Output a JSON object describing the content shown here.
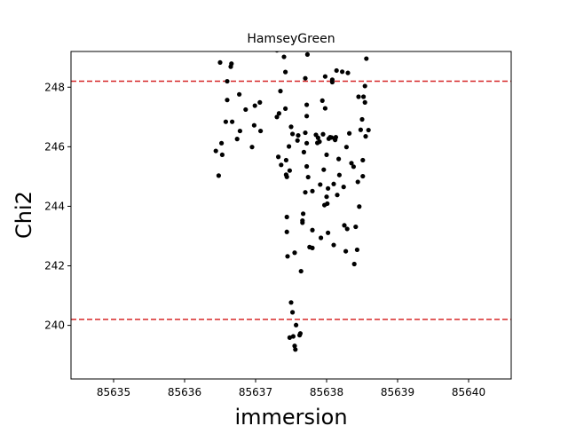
{
  "chart_data": {
    "type": "scatter",
    "title": "HamseyGreen",
    "xlabel": "immersion",
    "ylabel": "Chi2",
    "xlim": [
      85634.4,
      85640.6
    ],
    "ylim": [
      238.2,
      249.2
    ],
    "xticks": [
      85635,
      85636,
      85637,
      85638,
      85639,
      85640
    ],
    "yticks": [
      240,
      242,
      244,
      246,
      248
    ],
    "grid": false,
    "point_color": "#000000",
    "hlines": [
      {
        "y": 248.2,
        "color": "#d62728",
        "style": "dashed"
      },
      {
        "y": 240.2,
        "color": "#d62728",
        "style": "dashed"
      }
    ],
    "points": [
      [
        85636.44,
        245.86
      ],
      [
        85636.48,
        245.03
      ],
      [
        85636.5,
        248.83
      ],
      [
        85636.52,
        246.12
      ],
      [
        85636.53,
        245.73
      ],
      [
        85636.58,
        246.84
      ],
      [
        85636.6,
        247.57
      ],
      [
        85636.6,
        248.2
      ],
      [
        85636.65,
        248.69
      ],
      [
        85636.66,
        248.79
      ],
      [
        85636.67,
        246.84
      ],
      [
        85636.74,
        246.26
      ],
      [
        85636.77,
        247.76
      ],
      [
        85636.78,
        246.53
      ],
      [
        85636.86,
        247.25
      ],
      [
        85636.95,
        245.99
      ],
      [
        85636.98,
        246.72
      ],
      [
        85636.99,
        247.38
      ],
      [
        85637.06,
        247.49
      ],
      [
        85637.07,
        246.53
      ],
      [
        85637.3,
        247.0
      ],
      [
        85637.3,
        249.24
      ],
      [
        85637.32,
        245.66
      ],
      [
        85637.33,
        247.12
      ],
      [
        85637.35,
        247.87
      ],
      [
        85637.36,
        245.39
      ],
      [
        85637.4,
        249.02
      ],
      [
        85637.42,
        248.51
      ],
      [
        85637.42,
        247.28
      ],
      [
        85637.43,
        245.55
      ],
      [
        85637.43,
        245.06
      ],
      [
        85637.44,
        244.99
      ],
      [
        85637.44,
        243.64
      ],
      [
        85637.44,
        243.14
      ],
      [
        85637.45,
        242.32
      ],
      [
        85637.47,
        246.01
      ],
      [
        85637.48,
        245.2
      ],
      [
        85637.48,
        239.59
      ],
      [
        85637.5,
        246.67
      ],
      [
        85637.5,
        240.77
      ],
      [
        85637.52,
        246.43
      ],
      [
        85637.52,
        240.44
      ],
      [
        85637.53,
        239.63
      ],
      [
        85637.55,
        242.44
      ],
      [
        85637.55,
        239.31
      ],
      [
        85637.56,
        239.19
      ],
      [
        85637.57,
        240.01
      ],
      [
        85637.59,
        246.21
      ],
      [
        85637.6,
        246.38
      ],
      [
        85637.62,
        239.67
      ],
      [
        85637.63,
        239.73
      ],
      [
        85637.64,
        241.82
      ],
      [
        85637.66,
        243.52
      ],
      [
        85637.66,
        243.45
      ],
      [
        85637.67,
        243.75
      ],
      [
        85637.68,
        245.82
      ],
      [
        85637.7,
        246.47
      ],
      [
        85637.7,
        248.3
      ],
      [
        85637.7,
        244.47
      ],
      [
        85637.72,
        247.03
      ],
      [
        85637.72,
        247.41
      ],
      [
        85637.72,
        246.12
      ],
      [
        85637.72,
        245.34
      ],
      [
        85637.73,
        249.1
      ],
      [
        85637.73,
        249.3
      ],
      [
        85637.74,
        244.98
      ],
      [
        85637.76,
        242.63
      ],
      [
        85637.8,
        243.2
      ],
      [
        85637.8,
        242.6
      ],
      [
        85637.8,
        244.51
      ],
      [
        85637.85,
        246.4
      ],
      [
        85637.87,
        246.13
      ],
      [
        85637.88,
        246.3
      ],
      [
        85637.9,
        246.17
      ],
      [
        85637.91,
        244.73
      ],
      [
        85637.92,
        242.94
      ],
      [
        85637.94,
        247.55
      ],
      [
        85637.95,
        246.42
      ],
      [
        85637.96,
        245.23
      ],
      [
        85637.97,
        244.04
      ],
      [
        85637.98,
        247.29
      ],
      [
        85637.98,
        248.36
      ],
      [
        85638.0,
        245.73
      ],
      [
        85638.0,
        244.32
      ],
      [
        85638.01,
        244.09
      ],
      [
        85638.02,
        243.11
      ],
      [
        85638.02,
        244.6
      ],
      [
        85638.03,
        246.27
      ],
      [
        85638.05,
        246.32
      ],
      [
        85638.07,
        246.31
      ],
      [
        85638.08,
        248.17
      ],
      [
        85638.08,
        248.25
      ],
      [
        85638.1,
        242.7
      ],
      [
        85638.1,
        244.75
      ],
      [
        85638.12,
        246.23
      ],
      [
        85638.13,
        246.32
      ],
      [
        85638.14,
        248.56
      ],
      [
        85638.15,
        244.38
      ],
      [
        85638.17,
        245.59
      ],
      [
        85638.18,
        245.05
      ],
      [
        85638.22,
        248.52
      ],
      [
        85638.24,
        244.65
      ],
      [
        85638.25,
        243.36
      ],
      [
        85638.27,
        242.49
      ],
      [
        85638.28,
        245.99
      ],
      [
        85638.29,
        243.24
      ],
      [
        85638.3,
        248.48
      ],
      [
        85638.32,
        246.45
      ],
      [
        85638.35,
        245.45
      ],
      [
        85638.38,
        245.33
      ],
      [
        85638.39,
        242.06
      ],
      [
        85638.41,
        243.31
      ],
      [
        85638.43,
        242.54
      ],
      [
        85638.44,
        244.82
      ],
      [
        85638.45,
        247.68
      ],
      [
        85638.46,
        243.99
      ],
      [
        85638.48,
        246.57
      ],
      [
        85638.5,
        246.92
      ],
      [
        85638.51,
        245.55
      ],
      [
        85638.51,
        245.01
      ],
      [
        85638.52,
        247.68
      ],
      [
        85638.54,
        247.49
      ],
      [
        85638.54,
        248.04
      ],
      [
        85638.55,
        246.35
      ],
      [
        85638.56,
        248.96
      ],
      [
        85638.59,
        246.56
      ]
    ]
  }
}
